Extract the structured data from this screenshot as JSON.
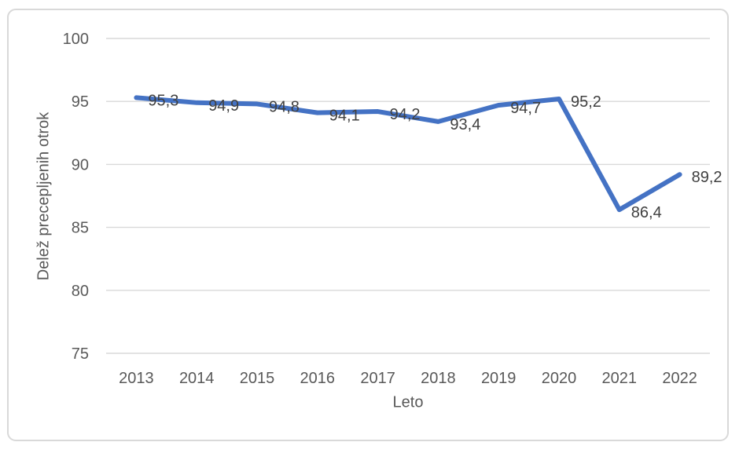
{
  "figure": {
    "background_color": "#ffffff",
    "border_color": "#d9d9d9"
  },
  "chart_data": {
    "type": "line",
    "title": "",
    "xlabel": "Leto",
    "ylabel": "Delež precepljenih otrok",
    "categories": [
      "2013",
      "2014",
      "2015",
      "2016",
      "2017",
      "2018",
      "2019",
      "2020",
      "2021",
      "2022"
    ],
    "values": [
      95.3,
      94.9,
      94.8,
      94.1,
      94.2,
      93.4,
      94.7,
      95.2,
      86.4,
      89.2
    ],
    "data_labels": [
      "95,3",
      "94,9",
      "94,8",
      "94,1",
      "94,2",
      "93,4",
      "94,7",
      "95,2",
      "86,4",
      "89,2"
    ],
    "ylim": [
      75,
      100
    ],
    "yticks": [
      "100",
      "95",
      "90",
      "85",
      "80",
      "75"
    ],
    "ytick_values": [
      100,
      95,
      90,
      85,
      80,
      75
    ],
    "grid": "horizontal",
    "legend": "none",
    "line_color": "#4472C4",
    "gridline_color": "#d9d9d9",
    "axis_text_color": "#595959",
    "data_label_color": "#404040"
  }
}
